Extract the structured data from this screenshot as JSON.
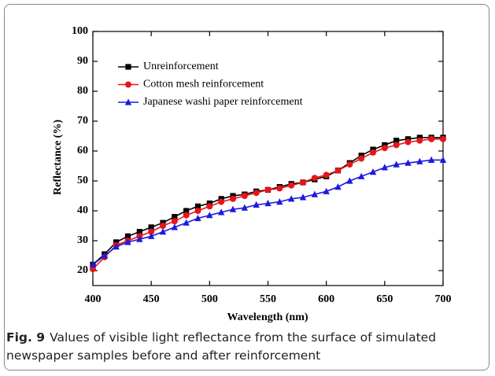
{
  "chart_data": {
    "type": "line",
    "x_label": "Wavelength (nm)",
    "y_label": "Reflectance (%)",
    "caption_label": "Fig. 9",
    "caption": "Values of visible light reflectance from the surface of simulated newspaper samples before and after reinforcement",
    "x": [
      400,
      410,
      420,
      430,
      440,
      450,
      460,
      470,
      480,
      490,
      500,
      510,
      520,
      530,
      540,
      550,
      560,
      570,
      580,
      590,
      600,
      610,
      620,
      630,
      640,
      650,
      660,
      670,
      680,
      690,
      700
    ],
    "series": [
      {
        "name": "Unreinforcement",
        "color": "#000000",
        "marker": "square",
        "values": [
          22,
          25.5,
          29.5,
          31.5,
          33,
          34.5,
          36,
          38,
          40,
          41.5,
          42.5,
          44,
          45,
          45.5,
          46.5,
          47,
          48,
          49,
          49.5,
          50.5,
          51.5,
          53.5,
          56,
          58.5,
          60.5,
          62,
          63.5,
          64,
          64.5,
          64.5,
          64.5
        ]
      },
      {
        "name": "Cotton mesh reinforcement",
        "color": "#e8141a",
        "marker": "circle",
        "values": [
          20.5,
          24.5,
          28.5,
          30,
          31.5,
          33,
          35,
          36.5,
          38.5,
          40,
          41.5,
          43,
          44,
          45,
          46,
          47,
          47.5,
          48.5,
          49.5,
          51,
          52,
          53.5,
          55.5,
          57.5,
          59.5,
          61,
          62,
          63,
          63.5,
          64,
          64
        ]
      },
      {
        "name": "Japanese washi paper reinforcement",
        "color": "#1a1ae0",
        "marker": "triangle",
        "values": [
          22,
          25,
          28,
          29.5,
          30.5,
          31.5,
          33,
          34.5,
          36,
          37.5,
          38.5,
          39.5,
          40.5,
          41,
          42,
          42.5,
          43,
          44,
          44.5,
          45.5,
          46.5,
          48,
          50,
          51.5,
          53,
          54.5,
          55.5,
          56,
          56.5,
          57,
          57
        ]
      }
    ],
    "xlim": [
      400,
      700
    ],
    "xticks": [
      400,
      450,
      500,
      550,
      600,
      650,
      700
    ],
    "ylim": [
      15,
      100
    ],
    "yticks": [
      20,
      30,
      40,
      50,
      60,
      70,
      80,
      90,
      100
    ],
    "legend": "upper left"
  }
}
